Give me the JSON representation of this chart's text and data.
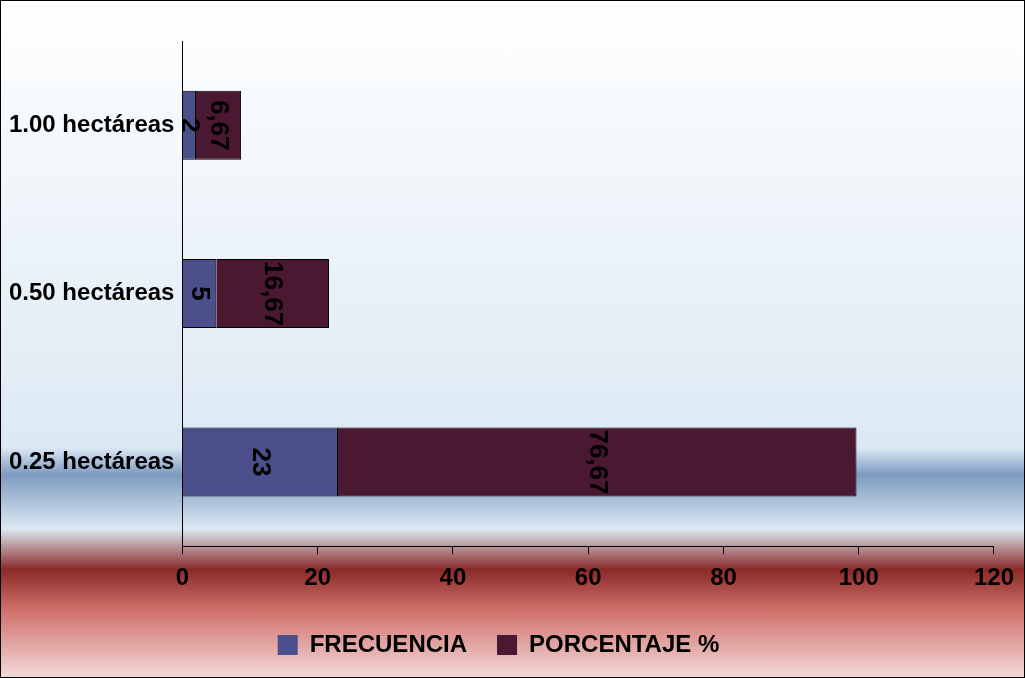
{
  "chart_data": {
    "type": "bar",
    "orientation": "horizontal",
    "stacked": true,
    "categories": [
      "1.00 hectáreas",
      "0.50 hectáreas",
      "0.25 hectáreas"
    ],
    "series": [
      {
        "name": "FRECUENCIA",
        "color": "#4b4f8c",
        "values": [
          2,
          5,
          23
        ],
        "value_labels": [
          "2",
          "5",
          "23"
        ]
      },
      {
        "name": "PORCENTAJE %",
        "color": "#4a1830",
        "values": [
          6.67,
          16.67,
          76.67
        ],
        "value_labels": [
          "6,67",
          "16,67",
          "76,67"
        ]
      }
    ],
    "xlim": [
      0,
      120
    ],
    "xticks": [
      0,
      20,
      40,
      60,
      80,
      100,
      120
    ],
    "grid": false,
    "legend": "bottom"
  }
}
